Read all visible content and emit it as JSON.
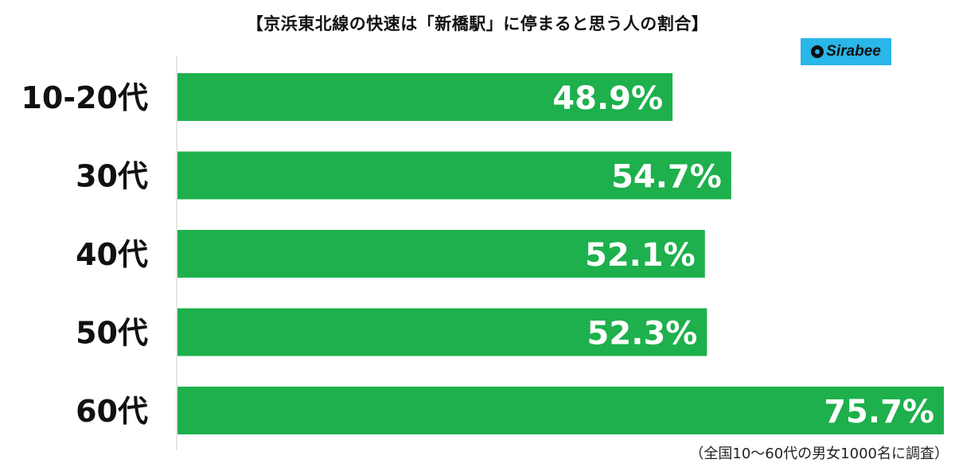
{
  "header": {
    "title": "【京浜東北線の快速は「新橋駅」に停まると思う人の割合】",
    "logo_text": "Sirabee"
  },
  "footnote": "（全国10～60代の男女1000名に調査）",
  "colors": {
    "bar": "#1db04c",
    "logo_bg": "#29b6e8"
  },
  "chart_data": {
    "type": "bar",
    "orientation": "horizontal",
    "title": "【京浜東北線の快速は「新橋駅」に停まると思う人の割合】",
    "categories": [
      "10-20代",
      "30代",
      "40代",
      "50代",
      "60代"
    ],
    "values": [
      48.9,
      54.7,
      52.1,
      52.3,
      75.7
    ],
    "value_labels": [
      "48.9%",
      "54.7%",
      "52.1%",
      "52.3%",
      "75.7%"
    ],
    "xlabel": "",
    "ylabel": "",
    "xlim": [
      0,
      75.7
    ],
    "grid": false,
    "legend": "none"
  }
}
